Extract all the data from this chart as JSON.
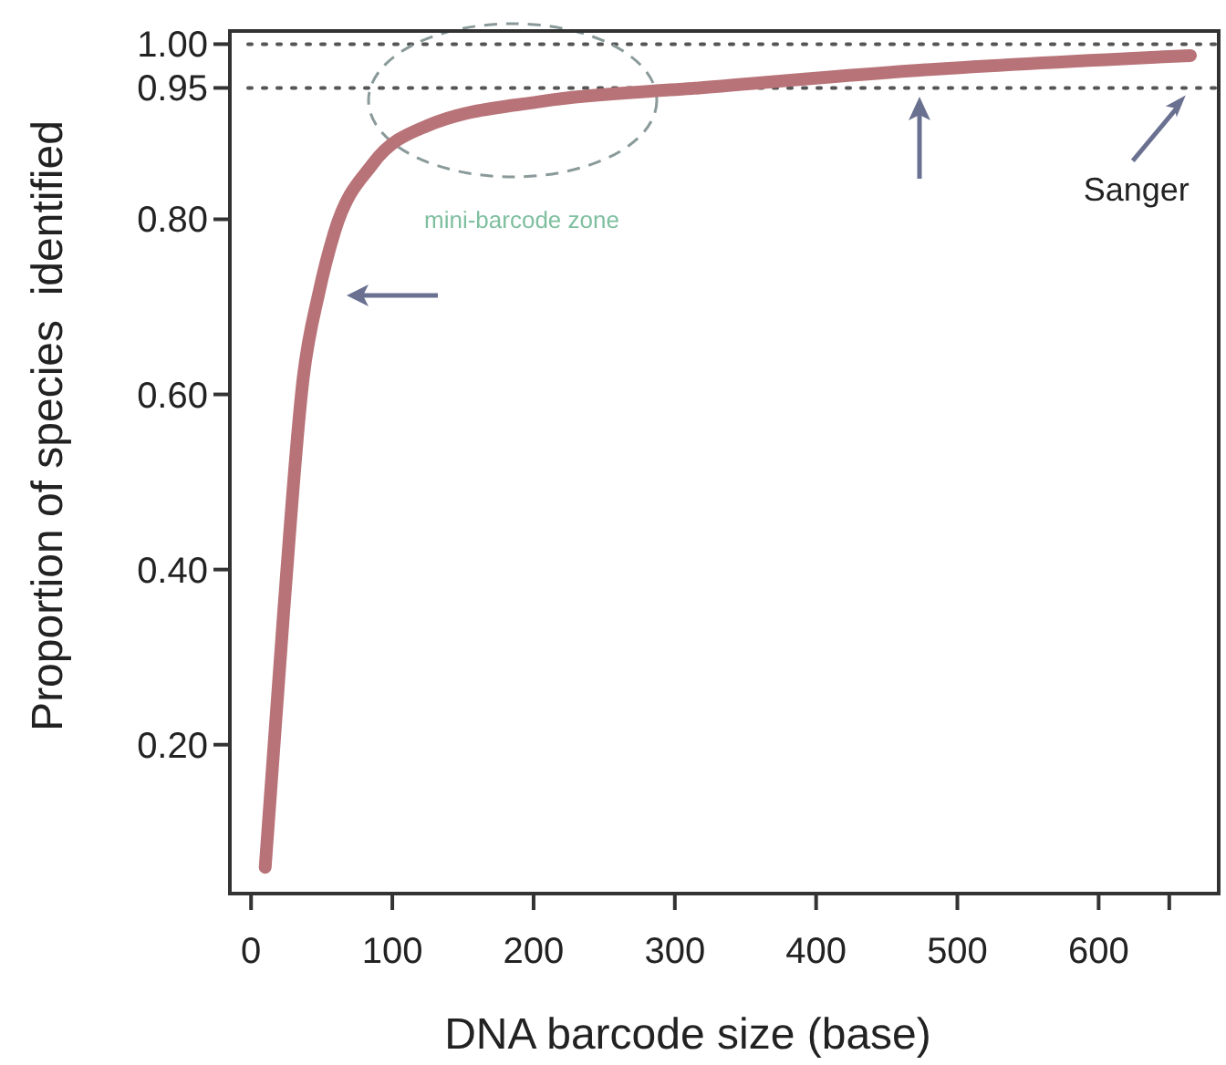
{
  "chart_data": {
    "type": "line",
    "xlabel": "DNA barcode size (base)",
    "ylabel": "Proportion of species  identified",
    "x": [
      10,
      23,
      37,
      48,
      59,
      86,
      125,
      207,
      317,
      471,
      665
    ],
    "series": [
      {
        "color": "#b87378",
        "values": [
          0.06,
          0.35,
          0.62,
          0.716,
          0.785,
          0.863,
          0.907,
          0.935,
          0.95,
          0.97,
          0.987
        ]
      }
    ],
    "xlim": [
      -15,
      685
    ],
    "ylim": [
      0.03,
      1.015
    ],
    "xticks": [
      0,
      100,
      200,
      300,
      400,
      500,
      600,
      {
        "value": 650,
        "label": null
      }
    ],
    "yticks": [
      {
        "value": 0.2,
        "label": "0.20"
      },
      {
        "value": 0.4,
        "label": "0.40"
      },
      {
        "value": 0.6,
        "label": "0.60"
      },
      {
        "value": 0.8,
        "label": "0.80"
      },
      {
        "value": 0.95,
        "label": "0.95"
      },
      {
        "value": 1,
        "label": "1.00"
      }
    ],
    "ref_lines": [
      {
        "axis": "y",
        "value": 1,
        "line_style": "dotted",
        "color": "#555555"
      },
      {
        "axis": "y",
        "value": 0.95,
        "line_style": "dotted",
        "color": "#555555"
      }
    ],
    "annotations": [
      "mini-barcode zone",
      {
        "text": "Sanger",
        "x": 650,
        "y": 0.95
      }
    ],
    "grid": false,
    "marker": "none",
    "line_style": "solid"
  }
}
